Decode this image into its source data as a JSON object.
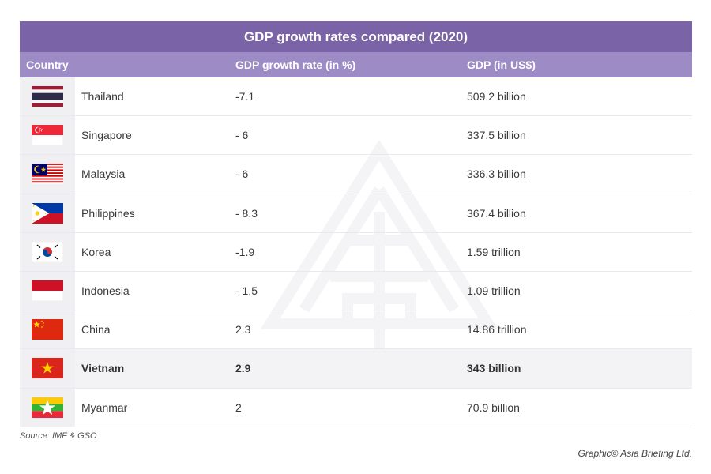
{
  "title": "GDP growth rates compared (2020)",
  "headers": {
    "country": "Country",
    "growth": "GDP growth rate (in %)",
    "gdp": "GDP (in US$)"
  },
  "rows": [
    {
      "country": "Thailand",
      "growth": "-7.1",
      "gdp": "509.2 billion",
      "flag": "thailand-flag"
    },
    {
      "country": "Singapore",
      "growth": "- 6",
      "gdp": "337.5 billion",
      "flag": "singapore-flag"
    },
    {
      "country": "Malaysia",
      "growth": "- 6",
      "gdp": "336.3 billion",
      "flag": "malaysia-flag"
    },
    {
      "country": "Philippines",
      "growth": "- 8.3",
      "gdp": "367.4 billion",
      "flag": "philippines-flag"
    },
    {
      "country": "Korea",
      "growth": "-1.9",
      "gdp": "1.59 trillion",
      "flag": "korea-flag"
    },
    {
      "country": "Indonesia",
      "growth": "- 1.5",
      "gdp": "1.09 trillion",
      "flag": "indonesia-flag"
    },
    {
      "country": "China",
      "growth": "2.3",
      "gdp": "14.86 trillion",
      "flag": "china-flag"
    },
    {
      "country": "Vietnam",
      "growth": "2.9",
      "gdp": "343 billion",
      "flag": "vietnam-flag",
      "highlighted": true
    },
    {
      "country": "Myanmar",
      "growth": "2",
      "gdp": "70.9 billion",
      "flag": "myanmar-flag"
    }
  ],
  "source": "Source: IMF & GSO",
  "credit": "Graphic© Asia Briefing Ltd.",
  "colors": {
    "title_bar": "#7b63a8",
    "header_bar": "#9d8bc6",
    "highlight_row": "#f3f3f5"
  },
  "chart_data": {
    "type": "table",
    "title": "GDP growth rates compared (2020)",
    "columns": [
      "Country",
      "GDP growth rate (in %)",
      "GDP (in US$)"
    ],
    "rows": [
      [
        "Thailand",
        "-7.1",
        "509.2 billion"
      ],
      [
        "Singapore",
        "- 6",
        "337.5 billion"
      ],
      [
        "Malaysia",
        "- 6",
        "336.3 billion"
      ],
      [
        "Philippines",
        "- 8.3",
        "367.4 billion"
      ],
      [
        "Korea",
        "-1.9",
        "1.59 trillion"
      ],
      [
        "Indonesia",
        "- 1.5",
        "1.09 trillion"
      ],
      [
        "China",
        "2.3",
        "14.86 trillion"
      ],
      [
        "Vietnam",
        "2.9",
        "343 billion"
      ],
      [
        "Myanmar",
        "2",
        "70.9 billion"
      ]
    ],
    "highlighted_row": "Vietnam"
  }
}
